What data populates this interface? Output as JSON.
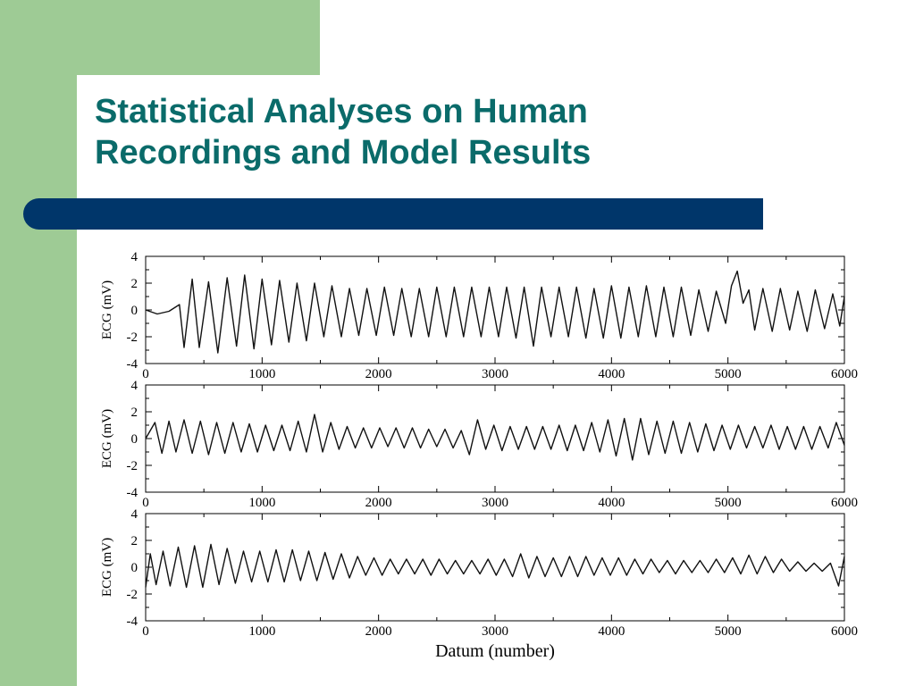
{
  "slide": {
    "title_line1": "Statistical Analyses on Human",
    "title_line2": "Recordings and Model Results"
  },
  "colors": {
    "sidebar": "#9ecb95",
    "band": "#00366a",
    "title": "#0a6b6a"
  },
  "chart_data": {
    "type": "line",
    "xlabel": "Datum (number)",
    "panels": [
      {
        "name": "top",
        "ylabel": "ECG (mV)",
        "xlim": [
          0,
          6000
        ],
        "ylim": [
          -4,
          4
        ],
        "xticks": [
          "0",
          "1000",
          "2000",
          "3000",
          "4000",
          "5000",
          "6000"
        ],
        "yticks": [
          "4",
          "2",
          "0",
          "-2",
          "-4"
        ],
        "points": [
          [
            0,
            0
          ],
          [
            100,
            -0.3
          ],
          [
            200,
            -0.1
          ],
          [
            290,
            0.4
          ],
          [
            330,
            -2.8
          ],
          [
            400,
            2.3
          ],
          [
            460,
            -2.8
          ],
          [
            540,
            2.1
          ],
          [
            620,
            -3.2
          ],
          [
            700,
            2.4
          ],
          [
            780,
            -2.7
          ],
          [
            850,
            2.6
          ],
          [
            930,
            -2.9
          ],
          [
            1000,
            2.3
          ],
          [
            1080,
            -2.6
          ],
          [
            1150,
            2.2
          ],
          [
            1230,
            -2.4
          ],
          [
            1300,
            2.0
          ],
          [
            1380,
            -2.3
          ],
          [
            1450,
            2.0
          ],
          [
            1530,
            -2.0
          ],
          [
            1600,
            1.8
          ],
          [
            1680,
            -2.0
          ],
          [
            1750,
            1.6
          ],
          [
            1830,
            -1.9
          ],
          [
            1900,
            1.6
          ],
          [
            1980,
            -1.9
          ],
          [
            2050,
            1.7
          ],
          [
            2130,
            -1.9
          ],
          [
            2200,
            1.6
          ],
          [
            2280,
            -2.0
          ],
          [
            2350,
            1.6
          ],
          [
            2430,
            -2.0
          ],
          [
            2500,
            1.7
          ],
          [
            2580,
            -2.0
          ],
          [
            2650,
            1.7
          ],
          [
            2730,
            -2.0
          ],
          [
            2800,
            1.7
          ],
          [
            2880,
            -2.0
          ],
          [
            2950,
            1.7
          ],
          [
            3030,
            -2.0
          ],
          [
            3100,
            1.7
          ],
          [
            3180,
            -2.1
          ],
          [
            3250,
            1.7
          ],
          [
            3330,
            -2.7
          ],
          [
            3400,
            1.7
          ],
          [
            3480,
            -2.0
          ],
          [
            3550,
            1.7
          ],
          [
            3630,
            -2.0
          ],
          [
            3700,
            1.7
          ],
          [
            3780,
            -2.1
          ],
          [
            3850,
            1.6
          ],
          [
            3930,
            -2.1
          ],
          [
            4000,
            1.8
          ],
          [
            4080,
            -2.1
          ],
          [
            4150,
            1.7
          ],
          [
            4230,
            -2.0
          ],
          [
            4300,
            1.8
          ],
          [
            4380,
            -2.0
          ],
          [
            4450,
            1.7
          ],
          [
            4530,
            -2.0
          ],
          [
            4600,
            1.7
          ],
          [
            4680,
            -1.9
          ],
          [
            4750,
            1.5
          ],
          [
            4830,
            -1.6
          ],
          [
            4900,
            1.4
          ],
          [
            4980,
            -1.0
          ],
          [
            5030,
            1.8
          ],
          [
            5080,
            2.9
          ],
          [
            5130,
            0.5
          ],
          [
            5180,
            1.5
          ],
          [
            5230,
            -1.5
          ],
          [
            5300,
            1.6
          ],
          [
            5380,
            -1.6
          ],
          [
            5450,
            1.6
          ],
          [
            5530,
            -1.5
          ],
          [
            5600,
            1.4
          ],
          [
            5680,
            -1.6
          ],
          [
            5750,
            1.5
          ],
          [
            5830,
            -1.4
          ],
          [
            5900,
            1.2
          ],
          [
            5960,
            -1.2
          ],
          [
            6000,
            1.0
          ]
        ]
      },
      {
        "name": "middle",
        "ylabel": "ECG (mV)",
        "xlim": [
          0,
          6000
        ],
        "ylim": [
          -4,
          4
        ],
        "xticks": [
          "0",
          "1000",
          "2000",
          "3000",
          "4000",
          "5000",
          "6000"
        ],
        "yticks": [
          "4",
          "2",
          "0",
          "-2",
          "-4"
        ],
        "points": [
          [
            0,
            0
          ],
          [
            80,
            1.2
          ],
          [
            140,
            -1.1
          ],
          [
            200,
            1.3
          ],
          [
            260,
            -1.0
          ],
          [
            330,
            1.4
          ],
          [
            400,
            -1.1
          ],
          [
            470,
            1.3
          ],
          [
            540,
            -1.2
          ],
          [
            610,
            1.2
          ],
          [
            680,
            -1.1
          ],
          [
            750,
            1.2
          ],
          [
            820,
            -1.0
          ],
          [
            890,
            1.1
          ],
          [
            960,
            -1.0
          ],
          [
            1030,
            1.0
          ],
          [
            1100,
            -0.9
          ],
          [
            1170,
            1.0
          ],
          [
            1240,
            -0.9
          ],
          [
            1310,
            1.3
          ],
          [
            1380,
            -1.0
          ],
          [
            1450,
            1.8
          ],
          [
            1520,
            -1.0
          ],
          [
            1590,
            1.2
          ],
          [
            1660,
            -0.8
          ],
          [
            1730,
            0.9
          ],
          [
            1800,
            -0.7
          ],
          [
            1870,
            0.8
          ],
          [
            1940,
            -0.7
          ],
          [
            2010,
            0.8
          ],
          [
            2080,
            -0.6
          ],
          [
            2150,
            0.8
          ],
          [
            2220,
            -0.7
          ],
          [
            2290,
            0.8
          ],
          [
            2360,
            -0.7
          ],
          [
            2430,
            0.7
          ],
          [
            2500,
            -0.6
          ],
          [
            2570,
            0.7
          ],
          [
            2640,
            -0.7
          ],
          [
            2710,
            0.6
          ],
          [
            2780,
            -1.2
          ],
          [
            2850,
            1.4
          ],
          [
            2920,
            -0.8
          ],
          [
            2990,
            1.0
          ],
          [
            3060,
            -0.9
          ],
          [
            3130,
            0.9
          ],
          [
            3200,
            -0.8
          ],
          [
            3270,
            0.9
          ],
          [
            3340,
            -0.8
          ],
          [
            3410,
            0.9
          ],
          [
            3480,
            -0.8
          ],
          [
            3550,
            1.0
          ],
          [
            3620,
            -0.9
          ],
          [
            3690,
            1.0
          ],
          [
            3760,
            -0.9
          ],
          [
            3830,
            1.2
          ],
          [
            3900,
            -1.0
          ],
          [
            3970,
            1.4
          ],
          [
            4040,
            -1.3
          ],
          [
            4110,
            1.5
          ],
          [
            4180,
            -1.6
          ],
          [
            4250,
            1.5
          ],
          [
            4320,
            -1.2
          ],
          [
            4390,
            1.3
          ],
          [
            4460,
            -1.1
          ],
          [
            4530,
            1.3
          ],
          [
            4600,
            -1.1
          ],
          [
            4670,
            1.2
          ],
          [
            4740,
            -1.0
          ],
          [
            4810,
            1.1
          ],
          [
            4880,
            -0.9
          ],
          [
            4950,
            1.0
          ],
          [
            5020,
            -0.8
          ],
          [
            5090,
            1.0
          ],
          [
            5160,
            -0.7
          ],
          [
            5230,
            0.9
          ],
          [
            5300,
            -0.7
          ],
          [
            5370,
            1.0
          ],
          [
            5440,
            -0.8
          ],
          [
            5510,
            0.9
          ],
          [
            5580,
            -0.8
          ],
          [
            5650,
            0.9
          ],
          [
            5720,
            -0.8
          ],
          [
            5790,
            0.9
          ],
          [
            5860,
            -0.7
          ],
          [
            5930,
            1.2
          ],
          [
            6000,
            -0.5
          ]
        ]
      },
      {
        "name": "bottom",
        "ylabel": "ECG (mV)",
        "xlim": [
          0,
          6000
        ],
        "ylim": [
          -4,
          4
        ],
        "xticks": [
          "0",
          "1000",
          "2000",
          "3000",
          "4000",
          "5000",
          "6000"
        ],
        "yticks": [
          "4",
          "2",
          "0",
          "-2",
          "-4"
        ],
        "points": [
          [
            0,
            -1.5
          ],
          [
            40,
            1.0
          ],
          [
            90,
            -1.3
          ],
          [
            150,
            1.2
          ],
          [
            210,
            -1.4
          ],
          [
            280,
            1.5
          ],
          [
            350,
            -1.5
          ],
          [
            420,
            1.6
          ],
          [
            490,
            -1.5
          ],
          [
            560,
            1.7
          ],
          [
            630,
            -1.3
          ],
          [
            700,
            1.4
          ],
          [
            770,
            -1.2
          ],
          [
            840,
            1.2
          ],
          [
            910,
            -1.1
          ],
          [
            980,
            1.2
          ],
          [
            1050,
            -1.1
          ],
          [
            1120,
            1.3
          ],
          [
            1190,
            -1.1
          ],
          [
            1260,
            1.3
          ],
          [
            1330,
            -1.0
          ],
          [
            1400,
            1.2
          ],
          [
            1470,
            -1.0
          ],
          [
            1540,
            1.1
          ],
          [
            1610,
            -0.9
          ],
          [
            1680,
            1.0
          ],
          [
            1750,
            -0.8
          ],
          [
            1820,
            0.8
          ],
          [
            1890,
            -0.6
          ],
          [
            1960,
            0.7
          ],
          [
            2030,
            -0.6
          ],
          [
            2100,
            0.6
          ],
          [
            2170,
            -0.5
          ],
          [
            2240,
            0.6
          ],
          [
            2310,
            -0.5
          ],
          [
            2380,
            0.6
          ],
          [
            2450,
            -0.6
          ],
          [
            2520,
            0.6
          ],
          [
            2590,
            -0.5
          ],
          [
            2660,
            0.5
          ],
          [
            2730,
            -0.5
          ],
          [
            2800,
            0.5
          ],
          [
            2870,
            -0.5
          ],
          [
            2940,
            0.6
          ],
          [
            3010,
            -0.6
          ],
          [
            3080,
            0.6
          ],
          [
            3150,
            -0.7
          ],
          [
            3220,
            1.0
          ],
          [
            3290,
            -0.8
          ],
          [
            3360,
            0.8
          ],
          [
            3430,
            -0.7
          ],
          [
            3500,
            0.7
          ],
          [
            3570,
            -0.7
          ],
          [
            3640,
            0.8
          ],
          [
            3710,
            -0.7
          ],
          [
            3780,
            0.8
          ],
          [
            3850,
            -0.6
          ],
          [
            3920,
            0.7
          ],
          [
            3990,
            -0.6
          ],
          [
            4060,
            0.7
          ],
          [
            4130,
            -0.6
          ],
          [
            4200,
            0.6
          ],
          [
            4270,
            -0.5
          ],
          [
            4340,
            0.6
          ],
          [
            4410,
            -0.4
          ],
          [
            4480,
            0.5
          ],
          [
            4550,
            -0.5
          ],
          [
            4620,
            0.5
          ],
          [
            4690,
            -0.4
          ],
          [
            4760,
            0.5
          ],
          [
            4830,
            -0.4
          ],
          [
            4900,
            0.6
          ],
          [
            4970,
            -0.4
          ],
          [
            5040,
            0.7
          ],
          [
            5110,
            -0.5
          ],
          [
            5180,
            0.9
          ],
          [
            5250,
            -0.5
          ],
          [
            5320,
            0.8
          ],
          [
            5390,
            -0.4
          ],
          [
            5460,
            0.6
          ],
          [
            5530,
            -0.3
          ],
          [
            5600,
            0.4
          ],
          [
            5670,
            -0.3
          ],
          [
            5740,
            0.3
          ],
          [
            5810,
            -0.3
          ],
          [
            5880,
            0.3
          ],
          [
            5950,
            -1.4
          ],
          [
            6000,
            0.8
          ]
        ]
      }
    ]
  }
}
